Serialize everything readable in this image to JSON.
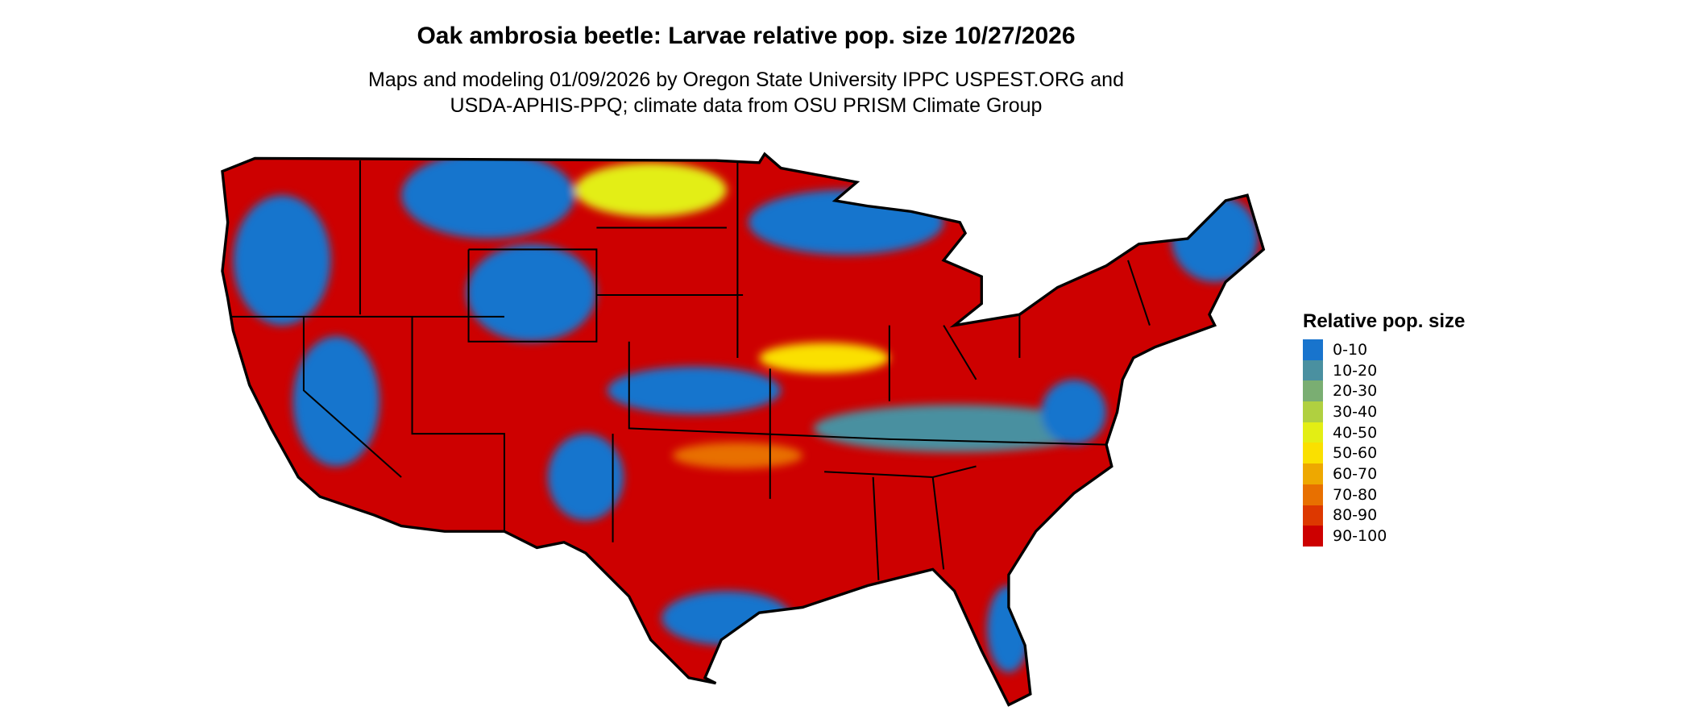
{
  "title": "Oak ambrosia beetle: Larvae relative pop. size 10/27/2026",
  "subtitle_line1": "Maps and modeling 01/09/2026 by Oregon State University IPPC USPEST.ORG and",
  "subtitle_line2": "USDA-APHIS-PPQ; climate data from OSU PRISM Climate Group",
  "legend": {
    "title": "Relative pop. size",
    "items": [
      {
        "label": "0-10",
        "color": "#1874CD"
      },
      {
        "label": "10-20",
        "color": "#4A90A0"
      },
      {
        "label": "20-30",
        "color": "#7AAE72"
      },
      {
        "label": "30-40",
        "color": "#B0D040"
      },
      {
        "label": "40-50",
        "color": "#E3EE14"
      },
      {
        "label": "50-60",
        "color": "#FAE000"
      },
      {
        "label": "60-70",
        "color": "#EEA800"
      },
      {
        "label": "70-80",
        "color": "#E87000"
      },
      {
        "label": "80-90",
        "color": "#DD3800"
      },
      {
        "label": "90-100",
        "color": "#CD0000"
      }
    ]
  }
}
